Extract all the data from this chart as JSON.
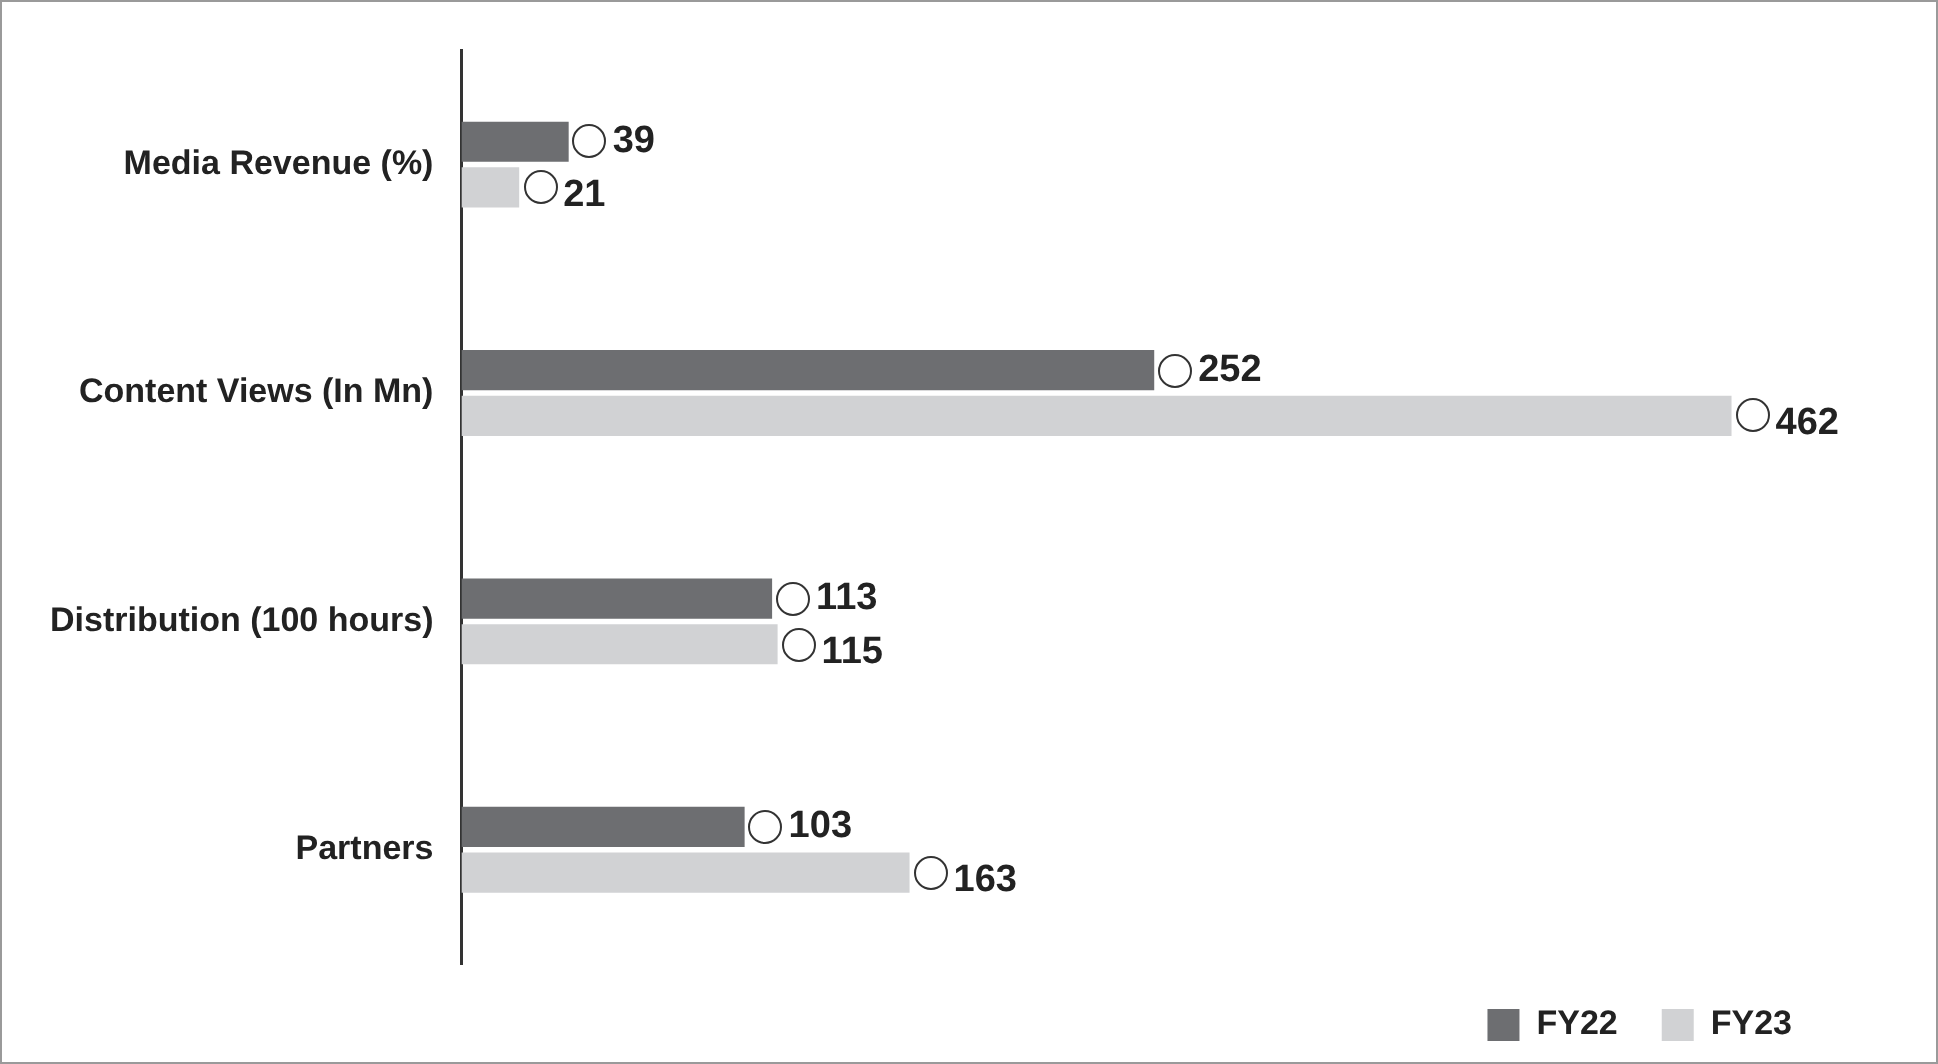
{
  "chart_data": {
    "type": "bar",
    "orientation": "horizontal",
    "categories": [
      "Media Revenue (%)",
      "Content Views (In Mn)",
      "Distribution (100 hours)",
      "Partners"
    ],
    "series": [
      {
        "name": "FY22",
        "color": "#6d6e71",
        "values": [
          39,
          252,
          113,
          103
        ]
      },
      {
        "name": "FY23",
        "color": "#d1d2d4",
        "values": [
          21,
          462,
          115,
          163
        ]
      }
    ],
    "data_labels": true,
    "legend": "bottom right",
    "grid": false
  }
}
